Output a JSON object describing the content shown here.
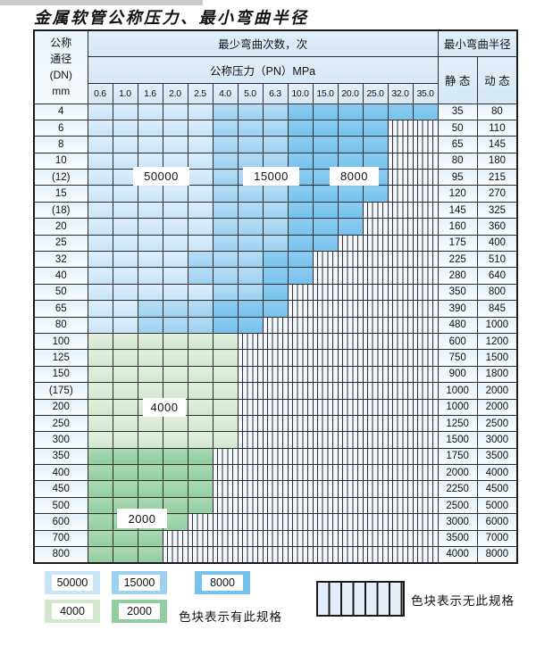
{
  "title": "金属软管公称压力、最小弯曲半径",
  "table": {
    "dn_header_lines": [
      "公称",
      "通径",
      "(DN)",
      "mm"
    ],
    "bend_cycles_header": "最少弯曲次数，次",
    "pressure_header": "公称压力（PN）MPa",
    "radius_header": "最小弯曲半径",
    "static_header": "静 态",
    "dynamic_header": "动 态",
    "pressure_columns": [
      "0.6",
      "1.0",
      "1.6",
      "2.0",
      "2.5",
      "4.0",
      "5.0",
      "6.3",
      "10.0",
      "15.0",
      "20.0",
      "25.0",
      "32.0",
      "35.0"
    ],
    "rows": [
      {
        "dn": "4",
        "static": "35",
        "dynamic": "80",
        "zones": [
          [
            "b50000",
            5
          ],
          [
            "b15000",
            3
          ],
          [
            "b8000",
            6
          ]
        ]
      },
      {
        "dn": "6",
        "static": "50",
        "dynamic": "110",
        "zones": [
          [
            "b50000",
            5
          ],
          [
            "b15000",
            3
          ],
          [
            "b8000",
            4
          ]
        ]
      },
      {
        "dn": "8",
        "static": "65",
        "dynamic": "145",
        "zones": [
          [
            "b50000",
            5
          ],
          [
            "b15000",
            3
          ],
          [
            "b8000",
            4
          ]
        ]
      },
      {
        "dn": "10",
        "static": "80",
        "dynamic": "180",
        "zones": [
          [
            "b50000",
            5
          ],
          [
            "b15000",
            3
          ],
          [
            "b8000",
            4
          ]
        ]
      },
      {
        "dn": "(12)",
        "static": "95",
        "dynamic": "215",
        "zones": [
          [
            "b50000",
            5
          ],
          [
            "b15000",
            3
          ],
          [
            "b8000",
            4
          ]
        ]
      },
      {
        "dn": "15",
        "static": "120",
        "dynamic": "270",
        "zones": [
          [
            "b50000",
            5
          ],
          [
            "b15000",
            3
          ],
          [
            "b8000",
            4
          ]
        ]
      },
      {
        "dn": "(18)",
        "static": "145",
        "dynamic": "325",
        "zones": [
          [
            "b50000",
            5
          ],
          [
            "b15000",
            3
          ],
          [
            "b8000",
            3
          ]
        ]
      },
      {
        "dn": "20",
        "static": "160",
        "dynamic": "360",
        "zones": [
          [
            "b50000",
            5
          ],
          [
            "b15000",
            3
          ],
          [
            "b8000",
            3
          ]
        ]
      },
      {
        "dn": "25",
        "static": "175",
        "dynamic": "400",
        "zones": [
          [
            "b50000",
            5
          ],
          [
            "b15000",
            3
          ],
          [
            "b8000",
            2
          ]
        ]
      },
      {
        "dn": "32",
        "static": "225",
        "dynamic": "510",
        "zones": [
          [
            "b50000",
            4
          ],
          [
            "b15000",
            3
          ],
          [
            "b8000",
            2
          ]
        ]
      },
      {
        "dn": "40",
        "static": "280",
        "dynamic": "640",
        "zones": [
          [
            "b50000",
            4
          ],
          [
            "b15000",
            3
          ],
          [
            "b8000",
            2
          ]
        ]
      },
      {
        "dn": "50",
        "static": "350",
        "dynamic": "800",
        "zones": [
          [
            "b50000",
            5
          ],
          [
            "b15000",
            2
          ],
          [
            "b8000",
            1
          ]
        ]
      },
      {
        "dn": "65",
        "static": "390",
        "dynamic": "845",
        "zones": [
          [
            "b50000",
            2
          ],
          [
            "b15000",
            3
          ],
          [
            "b8000",
            3
          ]
        ]
      },
      {
        "dn": "80",
        "static": "480",
        "dynamic": "1000",
        "zones": [
          [
            "b50000",
            2
          ],
          [
            "b15000",
            3
          ],
          [
            "b8000",
            2
          ]
        ]
      },
      {
        "dn": "100",
        "static": "600",
        "dynamic": "1200",
        "zones": [
          [
            "g4000",
            6
          ]
        ]
      },
      {
        "dn": "125",
        "static": "750",
        "dynamic": "1500",
        "zones": [
          [
            "g4000",
            6
          ]
        ]
      },
      {
        "dn": "150",
        "static": "900",
        "dynamic": "1800",
        "zones": [
          [
            "g4000",
            6
          ]
        ]
      },
      {
        "dn": "(175)",
        "static": "1000",
        "dynamic": "2000",
        "zones": [
          [
            "g4000",
            6
          ]
        ]
      },
      {
        "dn": "200",
        "static": "1000",
        "dynamic": "2000",
        "zones": [
          [
            "g4000",
            6
          ]
        ]
      },
      {
        "dn": "250",
        "static": "1250",
        "dynamic": "2500",
        "zones": [
          [
            "g4000",
            6
          ]
        ]
      },
      {
        "dn": "300",
        "static": "1500",
        "dynamic": "3000",
        "zones": [
          [
            "g4000",
            6
          ]
        ]
      },
      {
        "dn": "350",
        "static": "1750",
        "dynamic": "3500",
        "zones": [
          [
            "g2000",
            5
          ]
        ]
      },
      {
        "dn": "400",
        "static": "2000",
        "dynamic": "4000",
        "zones": [
          [
            "g2000",
            5
          ]
        ]
      },
      {
        "dn": "450",
        "static": "2250",
        "dynamic": "4500",
        "zones": [
          [
            "g2000",
            5
          ]
        ]
      },
      {
        "dn": "500",
        "static": "2500",
        "dynamic": "5000",
        "zones": [
          [
            "g2000",
            5
          ]
        ]
      },
      {
        "dn": "600",
        "static": "3000",
        "dynamic": "6000",
        "zones": [
          [
            "g2000",
            4
          ]
        ]
      },
      {
        "dn": "700",
        "static": "3500",
        "dynamic": "7000",
        "zones": [
          [
            "g2000",
            3
          ]
        ]
      },
      {
        "dn": "800",
        "static": "4000",
        "dynamic": "8000",
        "zones": [
          [
            "g2000",
            3
          ]
        ]
      }
    ]
  },
  "zone_labels": {
    "l50000": "50000",
    "l15000": "15000",
    "l8000": "8000",
    "l4000": "4000",
    "l2000": "2000"
  },
  "legend": {
    "items": [
      {
        "label": "50000"
      },
      {
        "label": "15000"
      },
      {
        "label": "8000"
      },
      {
        "label": "4000"
      },
      {
        "label": "2000"
      }
    ],
    "has_spec_note": "色块表示有此规格",
    "no_spec_note": "色块表示无此规格"
  },
  "colors": {
    "cycles_50000": "#c8e4f7",
    "cycles_15000": "#9cd1f1",
    "cycles_8000": "#74c2ec",
    "cycles_4000": "#d3e7cf",
    "cycles_2000": "#92cda0",
    "header_bg": "#d5e7f5",
    "stripe_line": "#2f2f2f"
  }
}
